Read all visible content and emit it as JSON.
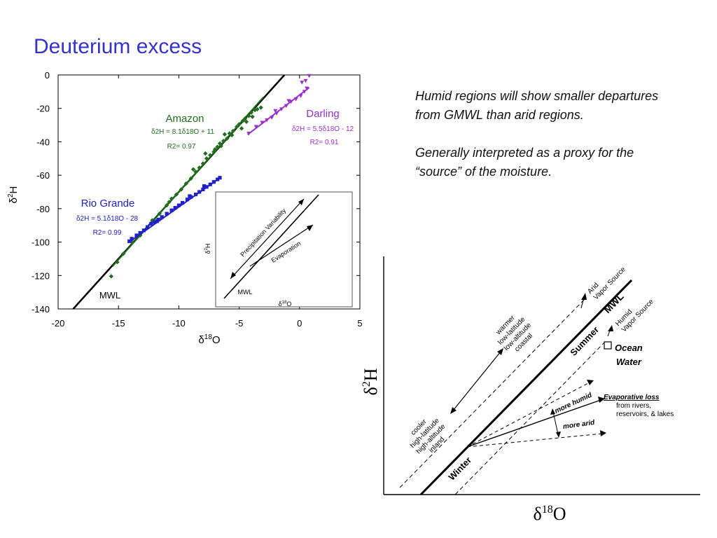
{
  "title": "Deuterium excess",
  "notes": {
    "p1": "Humid regions will show smaller departures from GMWL than arid regions.",
    "p2": "Generally interpreted as a proxy for the “source” of the moisture."
  },
  "colors": {
    "title": "#3333cc",
    "amazon": "#1f6f1f",
    "rio_grande": "#2020c8",
    "darling": "#9a2fd0",
    "mwl": "#000000"
  },
  "chart_data": [
    {
      "type": "scatter",
      "title": "",
      "xlabel": "δ18O",
      "ylabel": "δ2H",
      "xlim": [
        -20,
        5
      ],
      "ylim": [
        -140,
        0
      ],
      "xticks": [
        -20,
        -15,
        -10,
        -5,
        0,
        5
      ],
      "yticks": [
        0,
        -20,
        -40,
        -60,
        -80,
        -100,
        -120,
        -140
      ],
      "lines": [
        {
          "name": "MWL",
          "slope": 8,
          "intercept": 10,
          "color": "#000000"
        }
      ],
      "series": [
        {
          "name": "Amazon",
          "equation": "δ2H = 8.1δ18O + 11",
          "r2": "R2= 0.97",
          "color": "#1f6f1f",
          "marker": "diamond",
          "fit": {
            "slope": 8.1,
            "intercept": 11,
            "x_range": [
              -15.5,
              -3
            ]
          },
          "points": [
            [
              -15.6,
              -120.5
            ],
            [
              -15.1,
              -112
            ],
            [
              -14.6,
              -107
            ],
            [
              -13.9,
              -100
            ],
            [
              -13.2,
              -96
            ],
            [
              -12.6,
              -91.5
            ],
            [
              -12.2,
              -87
            ],
            [
              -11.6,
              -83
            ],
            [
              -11.0,
              -78
            ],
            [
              -10.6,
              -74
            ],
            [
              -10.2,
              -71.5
            ],
            [
              -9.8,
              -68.5
            ],
            [
              -9.4,
              -65
            ],
            [
              -9.0,
              -62
            ],
            [
              -8.6,
              -58
            ],
            [
              -8.3,
              -55.5
            ],
            [
              -8.0,
              -53
            ],
            [
              -7.7,
              -50
            ],
            [
              -7.4,
              -48
            ],
            [
              -7.1,
              -46
            ],
            [
              -6.8,
              -43
            ],
            [
              -6.6,
              -41
            ],
            [
              -6.3,
              -39.5
            ],
            [
              -6.0,
              -38
            ],
            [
              -5.8,
              -35
            ],
            [
              -5.5,
              -33.5
            ],
            [
              -5.2,
              -31
            ],
            [
              -5.0,
              -29.5
            ],
            [
              -4.7,
              -27.5
            ],
            [
              -4.5,
              -26
            ],
            [
              -4.2,
              -24.5
            ],
            [
              -4.0,
              -22.5
            ],
            [
              -3.7,
              -21
            ],
            [
              -3.5,
              -20.5
            ],
            [
              -3.2,
              -19.5
            ],
            [
              -8.8,
              -56.5
            ],
            [
              -7.0,
              -44.5
            ],
            [
              -6.5,
              -42.5
            ],
            [
              -5.6,
              -36
            ],
            [
              -4.4,
              -28
            ],
            [
              -10.8,
              -76
            ],
            [
              -7.8,
              -47
            ],
            [
              -6.2,
              -35.5
            ],
            [
              -4.8,
              -32
            ],
            [
              -3.9,
              -25
            ]
          ]
        },
        {
          "name": "Rio Grande",
          "equation": "δ2H = 5.1δ18O - 28",
          "r2": "R2= 0.99",
          "color": "#2020c8",
          "marker": "square",
          "fit": {
            "slope": 5.1,
            "intercept": -28,
            "x_range": [
              -14.2,
              -6.5
            ]
          },
          "points": [
            [
              -14.1,
              -99.5
            ],
            [
              -13.9,
              -98
            ],
            [
              -13.5,
              -96
            ],
            [
              -13.2,
              -94.5
            ],
            [
              -12.9,
              -93
            ],
            [
              -12.6,
              -91
            ],
            [
              -12.3,
              -89
            ],
            [
              -12.0,
              -88
            ],
            [
              -11.7,
              -86.5
            ],
            [
              -11.4,
              -85
            ],
            [
              -11.0,
              -83
            ],
            [
              -10.6,
              -81
            ],
            [
              -10.3,
              -79.5
            ],
            [
              -10.0,
              -78
            ],
            [
              -9.7,
              -76.5
            ],
            [
              -9.3,
              -74.5
            ],
            [
              -9.0,
              -73
            ],
            [
              -8.6,
              -71.5
            ],
            [
              -8.3,
              -70
            ],
            [
              -8.0,
              -68.5
            ],
            [
              -7.7,
              -67
            ],
            [
              -7.4,
              -65.5
            ],
            [
              -7.1,
              -64
            ],
            [
              -6.8,
              -62.5
            ],
            [
              -6.6,
              -61.5
            ],
            [
              -11.8,
              -87.5
            ],
            [
              -9.1,
              -72.5
            ],
            [
              -7.9,
              -66.5
            ]
          ]
        },
        {
          "name": "Darling",
          "equation": "δ2H = 5.5δ18O - 12",
          "r2": "R2= 0.91",
          "color": "#9a2fd0",
          "marker": "triangle-down",
          "fit": {
            "slope": 5.5,
            "intercept": -12,
            "x_range": [
              -4.3,
              0.8
            ]
          },
          "points": [
            [
              -4.2,
              -35
            ],
            [
              -3.6,
              -31
            ],
            [
              -3.1,
              -28.5
            ],
            [
              -2.7,
              -27
            ],
            [
              -2.3,
              -25.5
            ],
            [
              -1.9,
              -23
            ],
            [
              -1.5,
              -20.5
            ],
            [
              -1.1,
              -18.5
            ],
            [
              -0.7,
              -16
            ],
            [
              -0.3,
              -14.5
            ],
            [
              0.1,
              -12.5
            ],
            [
              0.4,
              -10
            ],
            [
              0.6,
              -8
            ],
            [
              -2.0,
              -21.5
            ],
            [
              -0.9,
              -15.5
            ],
            [
              0.5,
              -3.5
            ],
            [
              0.8,
              -0.5
            ],
            [
              0.2,
              -4.5
            ]
          ]
        }
      ],
      "annotations": {
        "mwl_label": "MWL"
      },
      "inset": {
        "ylabel": "δ2H",
        "xlabel": "δ18O",
        "labels": {
          "mwl": "MWL",
          "variability": "Precipitation Variability",
          "evaporation": "Evaporation"
        }
      }
    }
  ],
  "schematic": {
    "ylabel": "δ2H",
    "xlabel": "δ18O",
    "labels": {
      "mwl": "MWL",
      "summer": "Summer",
      "winter": "Winter",
      "ocean1": "Ocean",
      "ocean2": "Water",
      "arid1": "Arid",
      "arid2": "Vapor Source",
      "humid1": "Humid",
      "humid2": "Vapor Source",
      "warm1": "warmer",
      "warm2": "low-latitude",
      "warm3": "low-altitude",
      "warm4": "coastal",
      "cool1": "cooler",
      "cool2": "high-latitude",
      "cool3": "high-altitude",
      "cool4": "inland",
      "evap1": "Evaporative loss",
      "evap2": "from rivers,",
      "evap3": "reservoirs, &  lakes",
      "more_humid": "more humid",
      "more_arid": "more arid"
    }
  }
}
